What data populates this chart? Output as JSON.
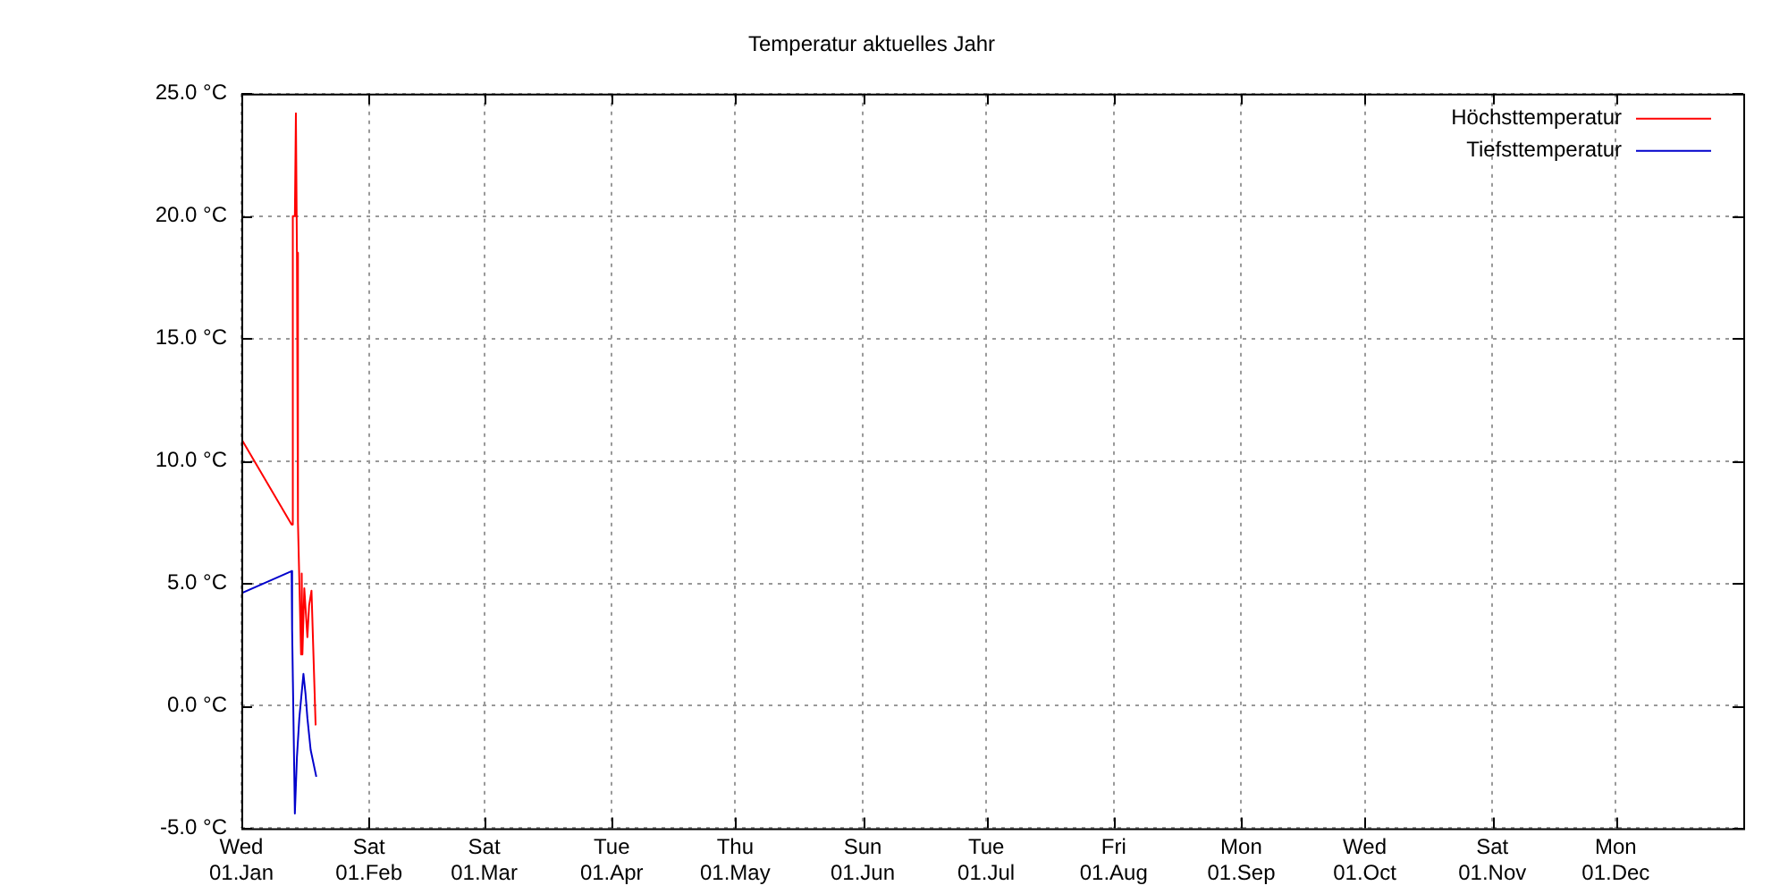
{
  "chart_data": {
    "type": "line",
    "title": "Temperatur aktuelles Jahr",
    "series": [
      {
        "name": "Höchsttemperatur",
        "color": "#ff0000",
        "x": [
          "--01-01T00:00",
          "--01-13T05:00",
          "--01-13T12:00",
          "--01-14T00:00",
          "--01-14T06:00",
          "--01-14T12:00",
          "--01-14T18:00",
          "--01-15T12:00",
          "--01-15T16:00",
          "--01-15T20:00",
          "--01-16T07:00",
          "--01-17T01:00",
          "--01-17T11:00",
          "--01-18T01:00",
          "--01-19T01:00"
        ],
        "values": [
          10.9,
          7.4,
          20.0,
          20.0,
          24.2,
          18.5,
          7.5,
          2.1,
          5.4,
          2.1,
          4.8,
          2.8,
          4.1,
          4.7,
          -0.8
        ]
      },
      {
        "name": "Tiefsttemperatur",
        "color": "#0000cc",
        "x": [
          "--01-01T00:00",
          "--01-13T05:00",
          "--01-13T08:00",
          "--01-14T00:00",
          "--01-14T12:00",
          "--01-15T02:00",
          "--01-16T02:00",
          "--01-16T14:00",
          "--01-17T01:00",
          "--01-17T20:00",
          "--01-19T05:00"
        ],
        "values": [
          4.6,
          5.5,
          3.1,
          -4.4,
          -2.1,
          -0.5,
          1.3,
          0.5,
          -0.5,
          -1.8,
          -2.9
        ]
      }
    ],
    "xlim": [
      "--01-01",
      "--12-31T23:59"
    ],
    "xticks": [
      {
        "value": "--01-01",
        "label": "Wed\n01.Jan"
      },
      {
        "value": "--02-01",
        "label": "Sat\n01.Feb"
      },
      {
        "value": "--03-01",
        "label": "Sat\n01.Mar"
      },
      {
        "value": "--04-01",
        "label": "Tue\n01.Apr"
      },
      {
        "value": "--05-01",
        "label": "Thu\n01.May"
      },
      {
        "value": "--06-01",
        "label": "Sun\n01.Jun"
      },
      {
        "value": "--07-01",
        "label": "Tue\n01.Jul"
      },
      {
        "value": "--08-01",
        "label": "Fri\n01.Aug"
      },
      {
        "value": "--09-01",
        "label": "Mon\n01.Sep"
      },
      {
        "value": "--10-01",
        "label": "Wed\n01.Oct"
      },
      {
        "value": "--11-01",
        "label": "Sat\n01.Nov"
      },
      {
        "value": "--12-01",
        "label": "Mon\n01.Dec"
      }
    ],
    "ylim": [
      -5,
      25
    ],
    "yticks": [
      {
        "value": -5,
        "label": "-5.0 °C"
      },
      {
        "value": 0,
        "label": "0.0 °C"
      },
      {
        "value": 5,
        "label": "5.0 °C"
      },
      {
        "value": 10,
        "label": "10.0 °C"
      },
      {
        "value": 15,
        "label": "15.0 °C"
      },
      {
        "value": 20,
        "label": "20.0 °C"
      },
      {
        "value": 25,
        "label": "25.0 °C"
      }
    ],
    "grid": true,
    "legend": "top right",
    "marker": "none",
    "line_style": "solid"
  }
}
